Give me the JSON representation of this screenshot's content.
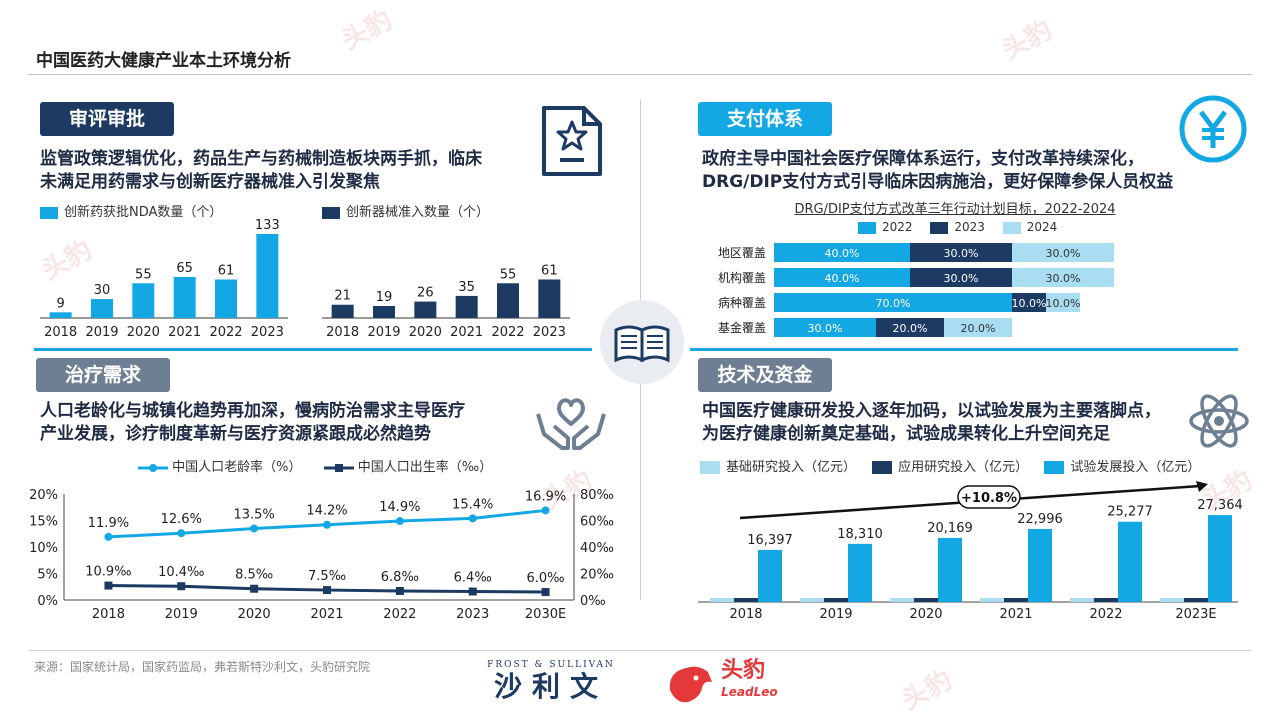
{
  "page_title": "中国医药大健康产业本土环境分析",
  "source": "来源：国家统计局，国家药监局，弗若斯特沙利文，头豹研究院",
  "logos": {
    "frost_en": "FROST & SULLIVAN",
    "frost_cn": "沙利文",
    "leadleo_cn": "头豹",
    "leadleo_en": "LeadLeo"
  },
  "colors": {
    "dark": "#1d3a63",
    "blue": "#13a8e4",
    "light": "#a9ddf2",
    "gray": "#6f7f93"
  },
  "sections": {
    "review": {
      "tag": "审评审批",
      "desc_line1": "监管政策逻辑优化，药品生产与药械制造板块两手抓，临床",
      "desc_line2": "未满足用药需求与创新医疗器械准入引发聚焦",
      "icon": "document-star-icon"
    },
    "payment": {
      "tag": "支付体系",
      "desc_line1": "政府主导中国社会医疗保障体系运行，支付改革持续深化，",
      "desc_line2": "DRG/DIP支付方式引导临床因病施治，更好保障参保人员权益",
      "icon": "yuan-icon"
    },
    "treatment": {
      "tag": "治疗需求",
      "desc_line1": "人口老龄化与城镇化趋势再加深，慢病防治需求主导医疗",
      "desc_line2": "产业发展，诊疗制度革新与医疗资源紧跟成必然趋势",
      "icon": "hands-heart-icon"
    },
    "tech": {
      "tag": "技术及资金",
      "desc_line1": "中国医疗健康研发投入逐年加码，以试验发展为主要落脚点，",
      "desc_line2": "为医疗健康创新奠定基础，试验成果转化上升空间充足",
      "icon": "atom-icon"
    }
  },
  "chart_data": [
    {
      "id": "nda",
      "type": "bar",
      "legend": "创新药获批NDA数量（个）",
      "categories": [
        "2018",
        "2019",
        "2020",
        "2021",
        "2022",
        "2023"
      ],
      "values": [
        9,
        30,
        55,
        65,
        61,
        133
      ],
      "color": "#13a8e4"
    },
    {
      "id": "devices",
      "type": "bar",
      "legend": "创新器械准入数量（个）",
      "categories": [
        "2018",
        "2019",
        "2020",
        "2021",
        "2022",
        "2023"
      ],
      "values": [
        21,
        19,
        26,
        35,
        55,
        61
      ],
      "color": "#1d3a63"
    },
    {
      "id": "drg",
      "type": "bar",
      "title": "DRG/DIP支付方式改革三年行动计划目标，2022-2024",
      "stacked": true,
      "orientation": "horizontal",
      "categories": [
        "地区覆盖",
        "机构覆盖",
        "病种覆盖",
        "基金覆盖"
      ],
      "series": [
        {
          "name": "2022",
          "values": [
            40.0,
            40.0,
            70.0,
            30.0
          ],
          "labels": [
            "40.0%",
            "40.0%",
            "70.0%",
            "30.0%"
          ],
          "color": "#13a8e4"
        },
        {
          "name": "2023",
          "values": [
            30.0,
            30.0,
            10.0,
            20.0
          ],
          "labels": [
            "30.0%",
            "30.0%",
            "10.0%",
            "20.0%"
          ],
          "color": "#1d3a63"
        },
        {
          "name": "2024",
          "values": [
            30.0,
            30.0,
            10.0,
            20.0
          ],
          "labels": [
            "30.0%",
            "30.0%",
            "10.0%",
            "20.0%"
          ],
          "color": "#a9ddf2"
        }
      ]
    },
    {
      "id": "population",
      "type": "line",
      "categories": [
        "2018",
        "2019",
        "2020",
        "2021",
        "2022",
        "2023",
        "2030E"
      ],
      "series": [
        {
          "name": "中国人口老龄率（%）",
          "axis": "left",
          "values": [
            11.9,
            12.6,
            13.5,
            14.2,
            14.9,
            15.4,
            16.9
          ],
          "labels": [
            "11.9%",
            "12.6%",
            "13.5%",
            "14.2%",
            "14.9%",
            "15.4%",
            "16.9%"
          ],
          "color": "#13a8e4"
        },
        {
          "name": "中国人口出生率（‰）",
          "axis": "right",
          "values": [
            10.9,
            10.4,
            8.5,
            7.5,
            6.8,
            6.4,
            6.0
          ],
          "labels": [
            "10.9‰",
            "10.4‰",
            "8.5‰",
            "7.5‰",
            "6.8‰",
            "6.4‰",
            "6.0‰"
          ],
          "color": "#1d3a63"
        }
      ],
      "ylim_left": [
        0,
        20
      ],
      "yticks_left": [
        "20%",
        "15%",
        "10%",
        "5%",
        "0%"
      ],
      "ylim_right": [
        0,
        80
      ],
      "yticks_right": [
        "80‰",
        "60‰",
        "40‰",
        "20‰",
        "0‰"
      ]
    },
    {
      "id": "rnd",
      "type": "bar",
      "categories": [
        "2018",
        "2019",
        "2020",
        "2021",
        "2022",
        "2023E"
      ],
      "series": [
        {
          "name": "基础研究投入（亿元）",
          "values": [
            110,
            130,
            160,
            180,
            200,
            220
          ],
          "color": "#a9ddf2"
        },
        {
          "name": "应用研究投入（亿元）",
          "values": [
            550,
            600,
            650,
            700,
            800,
            900
          ],
          "color": "#1d3a63"
        },
        {
          "name": "试验发展投入（亿元）",
          "values": [
            16397,
            18310,
            20169,
            22996,
            25277,
            27364
          ],
          "labels": [
            "16,397",
            "18,310",
            "20,169",
            "22,996",
            "25,277",
            "27,364"
          ],
          "color": "#13a8e4"
        }
      ],
      "annotation": "+10.8%"
    }
  ]
}
